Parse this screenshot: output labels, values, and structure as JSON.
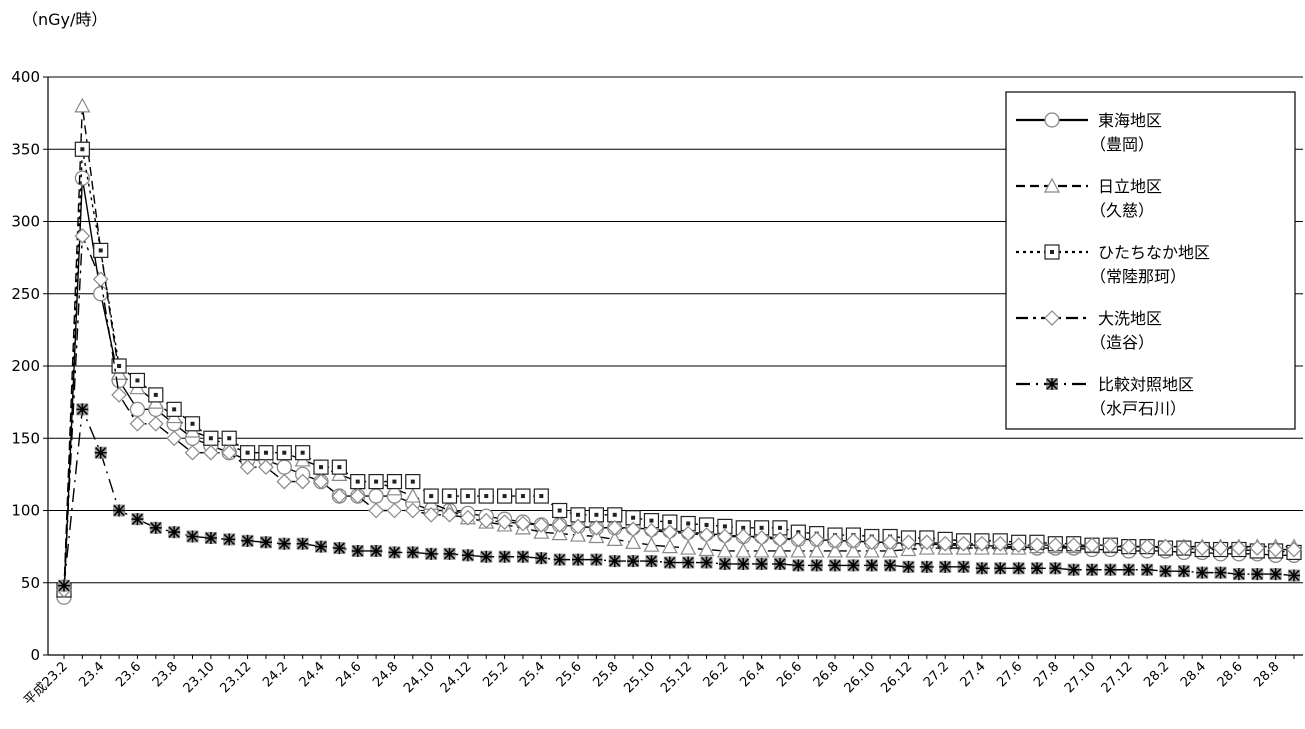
{
  "chart_data": {
    "type": "line",
    "unit_label": "（nGy/時）",
    "ylim": [
      0,
      400
    ],
    "yticks": [
      0,
      50,
      100,
      150,
      200,
      250,
      300,
      350,
      400
    ],
    "grid": "horizontal",
    "legend_position": "top-right",
    "x": [
      "平成23.2",
      "23.3",
      "23.4",
      "23.5",
      "23.6",
      "23.7",
      "23.8",
      "23.9",
      "23.10",
      "23.11",
      "23.12",
      "24.1",
      "24.2",
      "24.3",
      "24.4",
      "24.5",
      "24.6",
      "24.7",
      "24.8",
      "24.9",
      "24.10",
      "24.11",
      "24.12",
      "25.1",
      "25.2",
      "25.3",
      "25.4",
      "25.5",
      "25.6",
      "25.7",
      "25.8",
      "25.9",
      "25.10",
      "25.11",
      "25.12",
      "26.1",
      "26.2",
      "26.3",
      "26.4",
      "26.5",
      "26.6",
      "26.7",
      "26.8",
      "26.9",
      "26.10",
      "26.11",
      "26.12",
      "27.1",
      "27.2",
      "27.3",
      "27.4",
      "27.5",
      "27.6",
      "27.7",
      "27.8",
      "27.9",
      "27.10",
      "27.11",
      "27.12",
      "28.1",
      "28.2",
      "28.3",
      "28.4",
      "28.5",
      "28.6",
      "28.7",
      "28.8",
      "28.9"
    ],
    "xtick_labels": [
      "平成23.2",
      "23.4",
      "23.6",
      "23.8",
      "23.10",
      "23.12",
      "24.2",
      "24.4",
      "24.6",
      "24.8",
      "24.10",
      "24.12",
      "25.2",
      "25.4",
      "25.6",
      "25.8",
      "25.10",
      "25.12",
      "26.2",
      "26.4",
      "26.6",
      "26.8",
      "26.10",
      "26.12",
      "27.2",
      "27.4",
      "27.6",
      "27.8",
      "27.10",
      "27.12",
      "28.2",
      "28.4",
      "28.6",
      "28.8"
    ],
    "series": [
      {
        "name": "東海地区",
        "sub": "（豊岡）",
        "marker": "circle",
        "dash": "",
        "values": [
          40,
          330,
          250,
          190,
          170,
          170,
          160,
          150,
          145,
          140,
          135,
          135,
          130,
          125,
          120,
          110,
          110,
          110,
          110,
          105,
          100,
          100,
          98,
          96,
          94,
          92,
          90,
          90,
          89,
          88,
          88,
          88,
          87,
          86,
          85,
          84,
          83,
          82,
          82,
          81,
          80,
          80,
          79,
          79,
          78,
          78,
          77,
          77,
          76,
          76,
          76,
          75,
          75,
          74,
          74,
          74,
          73,
          73,
          72,
          72,
          72,
          71,
          71,
          70,
          70,
          70,
          69,
          69
        ]
      },
      {
        "name": "日立地区",
        "sub": "（久慈）",
        "marker": "triangle",
        "dash": "9,5",
        "values": [
          45,
          380,
          280,
          195,
          185,
          175,
          165,
          155,
          150,
          145,
          140,
          140,
          140,
          135,
          130,
          125,
          120,
          120,
          115,
          110,
          105,
          100,
          95,
          92,
          90,
          88,
          85,
          84,
          83,
          82,
          80,
          78,
          76,
          75,
          74,
          73,
          72,
          72,
          72,
          72,
          72,
          72,
          72,
          72,
          72,
          72,
          73,
          74,
          74,
          74,
          74,
          74,
          74,
          75,
          75,
          75,
          75,
          75,
          75,
          75,
          75,
          75,
          75,
          75,
          75,
          75,
          75,
          75
        ]
      },
      {
        "name": "ひたちなか地区",
        "sub": "（常陸那珂）",
        "marker": "square",
        "dash": "3,4",
        "values": [
          45,
          350,
          280,
          200,
          190,
          180,
          170,
          160,
          150,
          150,
          140,
          140,
          140,
          140,
          130,
          130,
          120,
          120,
          120,
          120,
          110,
          110,
          110,
          110,
          110,
          110,
          110,
          100,
          97,
          97,
          97,
          95,
          93,
          92,
          91,
          90,
          89,
          88,
          88,
          88,
          85,
          84,
          83,
          83,
          82,
          82,
          81,
          81,
          80,
          79,
          79,
          79,
          78,
          78,
          77,
          77,
          76,
          76,
          75,
          75,
          74,
          74,
          73,
          73,
          73,
          72,
          72,
          71
        ]
      },
      {
        "name": "大洗地区",
        "sub": "（造谷）",
        "marker": "diamond",
        "dash": "12,5,3,5",
        "values": [
          45,
          290,
          260,
          180,
          160,
          160,
          150,
          140,
          140,
          140,
          130,
          130,
          120,
          120,
          120,
          110,
          110,
          100,
          100,
          100,
          97,
          97,
          95,
          93,
          92,
          91,
          90,
          90,
          89,
          88,
          88,
          87,
          86,
          85,
          84,
          83,
          82,
          82,
          81,
          80,
          80,
          80,
          79,
          79,
          78,
          78,
          78,
          78,
          77,
          77,
          77,
          77,
          76,
          76,
          76,
          76,
          76,
          76,
          75,
          75,
          75,
          74,
          74,
          74,
          74,
          74,
          73,
          73
        ]
      },
      {
        "name": "比較対照地区",
        "sub": "（水戸石川）",
        "marker": "asterisk",
        "dash": "14,6,2,6",
        "values": [
          48,
          170,
          140,
          100,
          94,
          88,
          85,
          82,
          81,
          80,
          79,
          78,
          77,
          77,
          75,
          74,
          72,
          72,
          71,
          71,
          70,
          70,
          69,
          68,
          68,
          68,
          67,
          66,
          66,
          66,
          65,
          65,
          65,
          64,
          64,
          64,
          63,
          63,
          63,
          63,
          62,
          62,
          62,
          62,
          62,
          62,
          61,
          61,
          61,
          61,
          60,
          60,
          60,
          60,
          60,
          59,
          59,
          59,
          59,
          59,
          58,
          58,
          57,
          57,
          56,
          56,
          56,
          55
        ]
      }
    ]
  }
}
